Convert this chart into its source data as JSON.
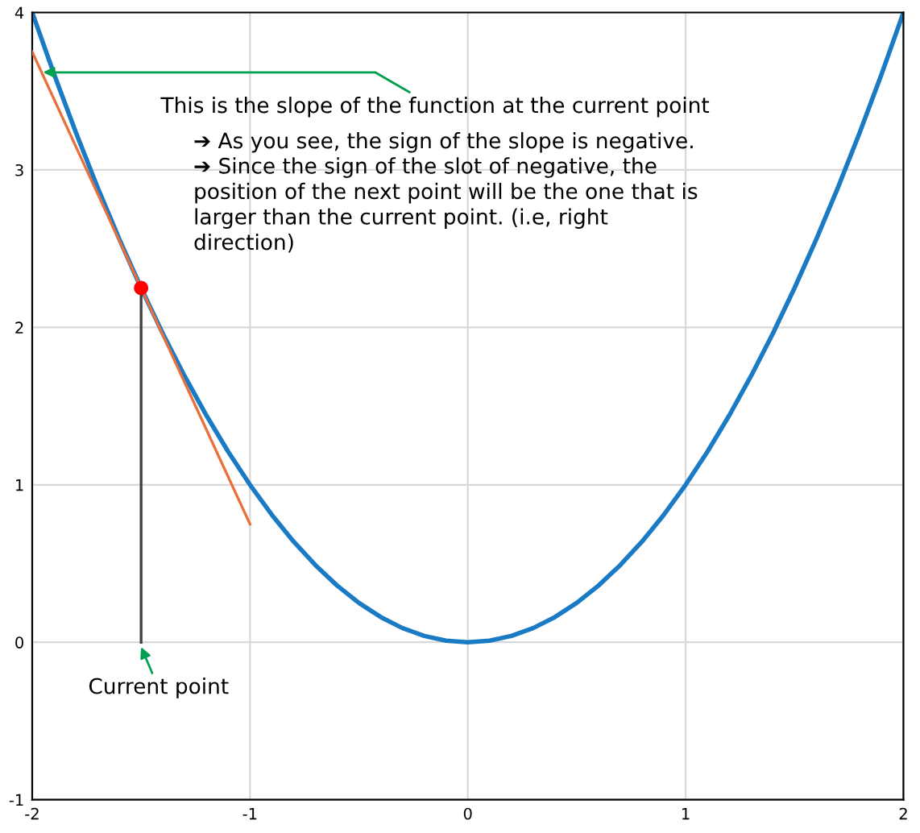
{
  "chart_data": {
    "type": "line",
    "xlim": [
      -2,
      2
    ],
    "ylim": [
      -1,
      4
    ],
    "xticks": [
      -2,
      -1,
      0,
      1,
      2
    ],
    "yticks": [
      -1,
      0,
      1,
      2,
      3,
      4
    ],
    "grid": true,
    "legend": false,
    "line_style": "solid",
    "series": [
      {
        "color": "#1a7bc4",
        "x": [
          -2,
          -1.9,
          -1.8,
          -1.7,
          -1.6,
          -1.5,
          -1.4,
          -1.3,
          -1.2,
          -1.1,
          -1,
          -0.9,
          -0.8,
          -0.7,
          -0.6,
          -0.5,
          -0.4,
          -0.3,
          -0.2,
          -0.1,
          0,
          0.1,
          0.2,
          0.3,
          0.4,
          0.5,
          0.6,
          0.7,
          0.8,
          0.9,
          1,
          1.1,
          1.2,
          1.3,
          1.4,
          1.5,
          1.6,
          1.7,
          1.8,
          1.9,
          2
        ],
        "values": [
          4,
          3.61,
          3.24,
          2.89,
          2.56,
          2.25,
          1.96,
          1.69,
          1.44,
          1.21,
          1,
          0.81,
          0.64,
          0.49,
          0.36,
          0.25,
          0.16,
          0.09,
          0.04,
          0.01,
          0,
          0.01,
          0.04,
          0.09,
          0.16,
          0.25,
          0.36,
          0.49,
          0.64,
          0.81,
          1,
          1.21,
          1.44,
          1.69,
          1.96,
          2.25,
          2.56,
          2.89,
          3.24,
          3.61,
          4
        ]
      },
      {
        "color": "#e8703a",
        "x": [
          -2,
          -1
        ],
        "values": [
          3.75,
          0.75
        ]
      },
      {
        "color": "#404040",
        "x": [
          -1.5,
          -1.5
        ],
        "values": [
          0,
          2.25
        ]
      },
      {
        "type": "scatter",
        "marker": "circle",
        "color": "#ff0000",
        "x": [
          -1.5
        ],
        "values": [
          2.25
        ]
      }
    ],
    "annotations": [
      {
        "text": "This is the slope of the function at the current point",
        "x": -1.95,
        "y": 3.62
      },
      "➔ As you see, the sign of the slope is negative.",
      "➔ Since the sign of the slot of negative, the\nposition of the next point will be the one that is\nlarger than the current point. (i.e, right\ndirection)",
      {
        "text": "Current point",
        "x": -1.5,
        "y": -0.03
      }
    ]
  }
}
